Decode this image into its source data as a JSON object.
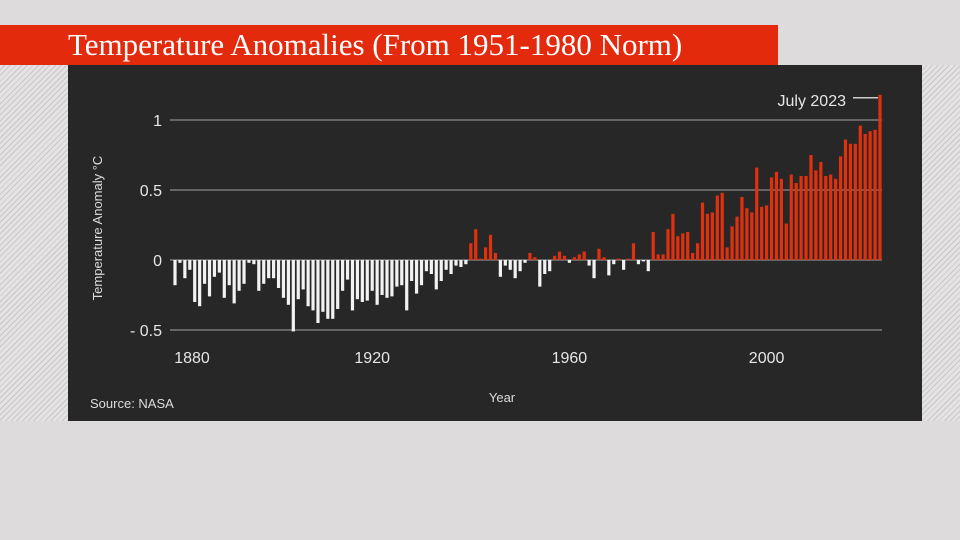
{
  "title": "Temperature Anomalies (From 1951-1980 Norm)",
  "source": "Source: NASA",
  "chart_data": {
    "type": "bar",
    "xlabel": "Year",
    "ylabel": "Temperature Anomaly °C",
    "ylim": [
      -0.5,
      1.2
    ],
    "grid": true,
    "x_ticks": [
      "1880",
      "1920",
      "1960",
      "2000"
    ],
    "y_ticks": [
      {
        "value": 1,
        "label": "1"
      },
      {
        "value": 0.5,
        "label": "0.5"
      },
      {
        "value": 0,
        "label": "0"
      },
      {
        "value": -0.5,
        "label": "- 0.5"
      }
    ],
    "annotation": "July 2023",
    "colors": {
      "positive": "#e0310f",
      "negative": "#f2f2f2",
      "background": "#272727",
      "title_banner": "#e42a0c"
    },
    "start_year": 1880,
    "values": [
      -0.18,
      -0.02,
      -0.13,
      -0.07,
      -0.3,
      -0.33,
      -0.17,
      -0.26,
      -0.12,
      -0.09,
      -0.27,
      -0.18,
      -0.31,
      -0.22,
      -0.17,
      -0.02,
      -0.03,
      -0.22,
      -0.17,
      -0.13,
      -0.13,
      -0.2,
      -0.27,
      -0.32,
      -0.51,
      -0.28,
      -0.21,
      -0.33,
      -0.36,
      -0.45,
      -0.37,
      -0.42,
      -0.42,
      -0.35,
      -0.22,
      -0.14,
      -0.36,
      -0.28,
      -0.3,
      -0.29,
      -0.22,
      -0.32,
      -0.25,
      -0.27,
      -0.26,
      -0.19,
      -0.18,
      -0.36,
      -0.15,
      -0.24,
      -0.18,
      -0.08,
      -0.1,
      -0.21,
      -0.15,
      -0.07,
      -0.1,
      -0.04,
      -0.05,
      -0.03,
      0.12,
      0.22,
      0.01,
      0.09,
      0.18,
      0.05,
      -0.12,
      -0.04,
      -0.07,
      -0.13,
      -0.08,
      -0.02,
      0.05,
      0.02,
      -0.19,
      -0.1,
      -0.08,
      0.03,
      0.06,
      0.03,
      -0.02,
      0.02,
      0.04,
      0.06,
      -0.04,
      -0.13,
      0.08,
      0.02,
      -0.11,
      -0.03,
      0.01,
      -0.07,
      0.01,
      0.12,
      -0.03,
      -0.01,
      -0.08,
      0.2,
      0.04,
      0.04,
      0.22,
      0.33,
      0.17,
      0.19,
      0.2,
      0.05,
      0.12,
      0.41,
      0.33,
      0.34,
      0.46,
      0.48,
      0.09,
      0.24,
      0.31,
      0.45,
      0.37,
      0.34,
      0.66,
      0.38,
      0.39,
      0.59,
      0.63,
      0.58,
      0.26,
      0.61,
      0.55,
      0.6,
      0.6,
      0.75,
      0.64,
      0.7,
      0.6,
      0.61,
      0.58,
      0.74,
      0.86,
      0.83,
      0.83,
      0.96,
      0.9,
      0.92,
      0.93,
      1.18
    ]
  }
}
